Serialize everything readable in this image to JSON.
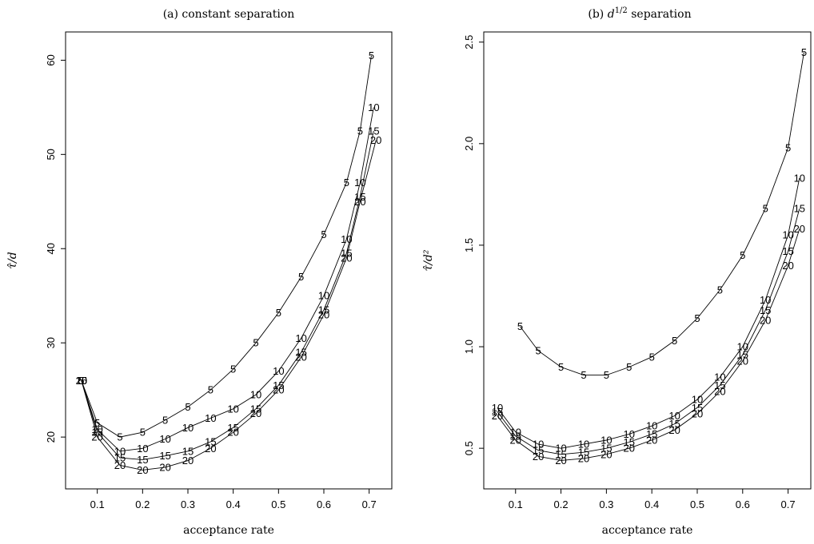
{
  "chart_data": [
    {
      "type": "line",
      "title": "(a) constant separation",
      "xlabel": "acceptance rate",
      "ylabel": "τ̂/d",
      "xlim": [
        0.03,
        0.75
      ],
      "ylim": [
        14.5,
        63
      ],
      "xticks": [
        0.1,
        0.2,
        0.3,
        0.4,
        0.5,
        0.6,
        0.7
      ],
      "xtick_labels": [
        "0.1",
        "0.2",
        "0.3",
        "0.4",
        "0.5",
        "0.6",
        "0.7"
      ],
      "yticks": [
        20,
        30,
        40,
        50,
        60
      ],
      "ytick_labels": [
        "20",
        "30",
        "40",
        "50",
        "60"
      ],
      "grid": false,
      "series": [
        {
          "name": "5",
          "x": [
            0.065,
            0.1,
            0.15,
            0.2,
            0.25,
            0.3,
            0.35,
            0.4,
            0.45,
            0.5,
            0.55,
            0.6,
            0.65,
            0.68,
            0.705
          ],
          "y": [
            26.0,
            21.5,
            20.0,
            20.5,
            21.8,
            23.2,
            25.0,
            27.2,
            30.0,
            33.2,
            37.0,
            41.5,
            47.0,
            52.5,
            60.5
          ]
        },
        {
          "name": "10",
          "x": [
            0.065,
            0.1,
            0.15,
            0.2,
            0.25,
            0.3,
            0.35,
            0.4,
            0.45,
            0.5,
            0.55,
            0.6,
            0.65,
            0.68,
            0.71
          ],
          "y": [
            26.0,
            20.8,
            18.5,
            18.8,
            19.8,
            21.0,
            22.0,
            23.0,
            24.5,
            27.0,
            30.5,
            35.0,
            41.0,
            47.0,
            55.0
          ]
        },
        {
          "name": "15",
          "x": [
            0.065,
            0.1,
            0.15,
            0.2,
            0.25,
            0.3,
            0.35,
            0.4,
            0.45,
            0.5,
            0.55,
            0.6,
            0.65,
            0.68,
            0.71
          ],
          "y": [
            26.0,
            20.5,
            17.8,
            17.6,
            18.0,
            18.5,
            19.5,
            21.0,
            23.0,
            25.5,
            29.0,
            33.5,
            39.5,
            45.5,
            52.5
          ]
        },
        {
          "name": "20",
          "x": [
            0.065,
            0.1,
            0.15,
            0.2,
            0.25,
            0.3,
            0.35,
            0.4,
            0.45,
            0.5,
            0.55,
            0.6,
            0.65,
            0.68,
            0.715
          ],
          "y": [
            26.0,
            20.0,
            17.0,
            16.5,
            16.8,
            17.5,
            18.8,
            20.5,
            22.5,
            25.0,
            28.5,
            33.0,
            39.0,
            45.0,
            51.5
          ]
        }
      ]
    },
    {
      "type": "line",
      "title": "(b) d^1/2 separation",
      "title_base": "(b) ",
      "title_symbol": "d",
      "title_exponent": "1/2",
      "title_rest": " separation",
      "xlabel": "acceptance rate",
      "ylabel": "τ̂/d²",
      "xlim": [
        0.03,
        0.75
      ],
      "ylim": [
        0.3,
        2.55
      ],
      "xticks": [
        0.1,
        0.2,
        0.3,
        0.4,
        0.5,
        0.6,
        0.7
      ],
      "xtick_labels": [
        "0.1",
        "0.2",
        "0.3",
        "0.4",
        "0.5",
        "0.6",
        "0.7"
      ],
      "yticks": [
        0.5,
        1.0,
        1.5,
        2.0,
        2.5
      ],
      "ytick_labels": [
        "0.5",
        "1.0",
        "1.5",
        "2.0",
        "2.5"
      ],
      "grid": false,
      "series": [
        {
          "name": "5",
          "x": [
            0.11,
            0.15,
            0.2,
            0.25,
            0.3,
            0.35,
            0.4,
            0.45,
            0.5,
            0.55,
            0.6,
            0.65,
            0.7,
            0.735
          ],
          "y": [
            1.1,
            0.98,
            0.9,
            0.86,
            0.86,
            0.9,
            0.95,
            1.03,
            1.14,
            1.28,
            1.45,
            1.68,
            1.98,
            2.45
          ]
        },
        {
          "name": "10",
          "x": [
            0.06,
            0.1,
            0.15,
            0.2,
            0.25,
            0.3,
            0.35,
            0.4,
            0.45,
            0.5,
            0.55,
            0.6,
            0.65,
            0.7,
            0.725
          ],
          "y": [
            0.7,
            0.58,
            0.52,
            0.5,
            0.52,
            0.54,
            0.57,
            0.61,
            0.66,
            0.74,
            0.85,
            1.0,
            1.23,
            1.55,
            1.83
          ]
        },
        {
          "name": "15",
          "x": [
            0.06,
            0.1,
            0.15,
            0.2,
            0.25,
            0.3,
            0.35,
            0.4,
            0.45,
            0.5,
            0.55,
            0.6,
            0.65,
            0.7,
            0.725
          ],
          "y": [
            0.68,
            0.56,
            0.49,
            0.47,
            0.48,
            0.5,
            0.53,
            0.57,
            0.62,
            0.7,
            0.81,
            0.96,
            1.18,
            1.47,
            1.68
          ]
        },
        {
          "name": "20",
          "x": [
            0.06,
            0.1,
            0.15,
            0.2,
            0.25,
            0.3,
            0.35,
            0.4,
            0.45,
            0.5,
            0.55,
            0.6,
            0.65,
            0.7,
            0.725
          ],
          "y": [
            0.66,
            0.54,
            0.46,
            0.44,
            0.45,
            0.47,
            0.5,
            0.54,
            0.59,
            0.67,
            0.78,
            0.93,
            1.13,
            1.4,
            1.58
          ]
        }
      ]
    }
  ]
}
